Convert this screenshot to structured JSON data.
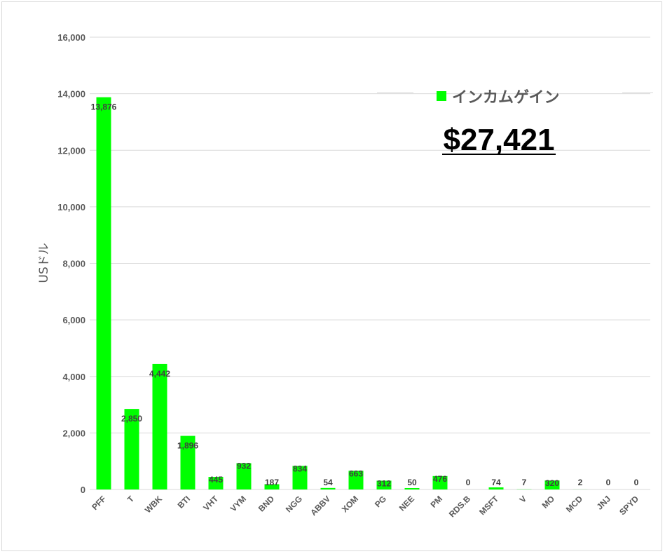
{
  "chart_data": {
    "type": "bar",
    "categories": [
      "PFF",
      "T",
      "WBK",
      "BTI",
      "VHT",
      "VYM",
      "BND",
      "NGG",
      "ABBV",
      "XOM",
      "PG",
      "NEE",
      "PM",
      "RDS.B",
      "MSFT",
      "V",
      "MO",
      "MCD",
      "JNJ",
      "SPYD"
    ],
    "series": [
      {
        "name": "インカムゲイン",
        "values": [
          13876,
          2850,
          4442,
          1896,
          445,
          932,
          187,
          834,
          54,
          663,
          312,
          50,
          476,
          0,
          74,
          7,
          320,
          2,
          0,
          0
        ],
        "labels": [
          "13,876",
          "2,850",
          "4,442",
          "1,896",
          "445",
          "932",
          "187",
          "834",
          "54",
          "663",
          "312",
          "50",
          "476",
          "0",
          "74",
          "7",
          "320",
          "2",
          "0",
          "0"
        ],
        "color": "#00ff00"
      }
    ],
    "ylabel": "USドル",
    "ylim": [
      0,
      16000
    ],
    "yticks": [
      0,
      2000,
      4000,
      6000,
      8000,
      10000,
      12000,
      14000,
      16000
    ],
    "ytick_labels": [
      "0",
      "2,000",
      "4,000",
      "6,000",
      "8,000",
      "10,000",
      "12,000",
      "14,000",
      "16,000"
    ],
    "grid": true,
    "legend_position": "top-right"
  },
  "annotation": {
    "total": "$27,421"
  },
  "colors": {
    "bar": "#00ff00",
    "grid": "#d9d9d9",
    "axis_text": "#595959"
  }
}
